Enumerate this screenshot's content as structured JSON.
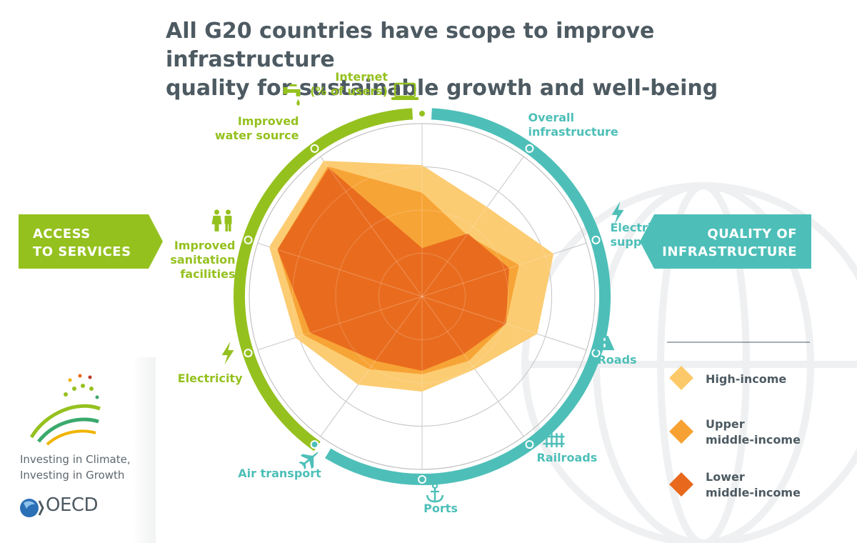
{
  "title_line1": "All G20 countries have scope to improve infrastructure",
  "title_line2": "quality for sustainable growth and well-being",
  "left_banner": {
    "line1": "ACCESS",
    "line2": "TO SERVICES",
    "color": "#95c11f"
  },
  "right_banner": {
    "line1": "QUALITY OF",
    "line2": "INFRASTRUCTURE",
    "color": "#4dbfb8"
  },
  "chart_data": {
    "type": "radar",
    "axes": [
      {
        "lines": [
          "Internet",
          "(% of users)"
        ],
        "group": "access",
        "icon": "laptop-icon"
      },
      {
        "lines": [
          "Overall",
          "infrastructure"
        ],
        "group": "quality",
        "icon": ""
      },
      {
        "lines": [
          "Electricity",
          "supply"
        ],
        "group": "quality",
        "icon": "lightning-icon"
      },
      {
        "lines": [
          "Roads"
        ],
        "group": "quality",
        "icon": "road-icon"
      },
      {
        "lines": [
          "Railroads"
        ],
        "group": "quality",
        "icon": "railroad-icon"
      },
      {
        "lines": [
          "Ports"
        ],
        "group": "quality",
        "icon": "anchor-icon"
      },
      {
        "lines": [
          "Air transport"
        ],
        "group": "quality",
        "icon": "airplane-icon"
      },
      {
        "lines": [
          "Electricity"
        ],
        "group": "access",
        "icon": "lightning-icon"
      },
      {
        "lines": [
          "Improved",
          "sanitation",
          "facilities"
        ],
        "group": "access",
        "icon": "people-icon"
      },
      {
        "lines": [
          "Improved",
          "water source"
        ],
        "group": "access",
        "icon": "water-tap-icon"
      }
    ],
    "range": [
      0,
      100
    ],
    "rings": 4,
    "series": [
      {
        "name": "High-income",
        "color": "#fcc96a",
        "values": [
          76,
          64,
          80,
          70,
          52,
          55,
          63,
          77,
          93,
          97
        ]
      },
      {
        "name": "Upper middle-income",
        "color": "#f7a133",
        "values": [
          60,
          44,
          59,
          51,
          46,
          45,
          52,
          72,
          88,
          93
        ]
      },
      {
        "name": "Lower middle-income",
        "color": "#e8691d",
        "values": [
          28,
          45,
          53,
          51,
          41,
          43,
          46,
          68,
          88,
          92
        ]
      }
    ],
    "colors": {
      "access": "#95c11f",
      "quality": "#4dbfb8",
      "grid": "#b7b7b7"
    }
  },
  "tagline_line1": "Investing in Climate,",
  "tagline_line2": "Investing in Growth",
  "oecd_text": "OECD"
}
